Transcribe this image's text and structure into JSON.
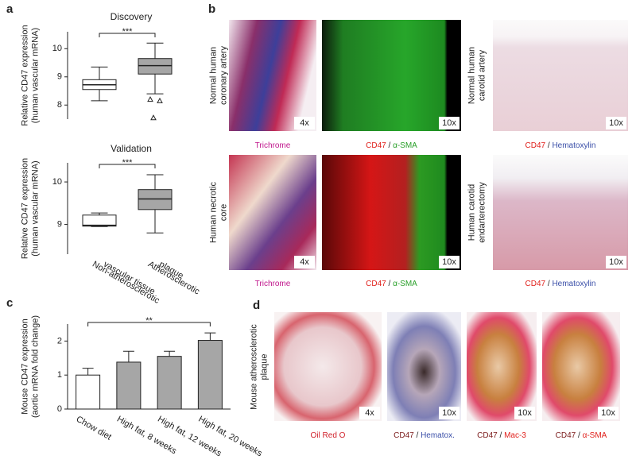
{
  "panel_labels": [
    "a",
    "b",
    "c",
    "d"
  ],
  "chart_data": [
    {
      "type": "box",
      "title": "Discovery",
      "ylabel": [
        "Relative CD47 expression",
        "(human vascular mRNA)"
      ],
      "categories": [
        null,
        null
      ],
      "boxes": [
        {
          "min": 8.15,
          "q1": 8.55,
          "median": 8.72,
          "q3": 8.9,
          "max": 9.35,
          "outliers": []
        },
        {
          "min": 8.4,
          "q1": 9.1,
          "median": 9.4,
          "q3": 9.65,
          "max": 10.2,
          "outliers": [
            8.2,
            8.15,
            7.55
          ]
        }
      ],
      "colors": [
        "#ffffff",
        "#a6a6a6"
      ],
      "ylim": [
        7.5,
        10.6
      ],
      "yticks": [
        8,
        9,
        10
      ],
      "annotation": "***"
    },
    {
      "type": "box",
      "title": "Validation",
      "ylabel": [
        "Relative CD47 expression",
        "(human vascular mRNA)"
      ],
      "categories": [
        [
          "Non-atherosclerotic",
          "vascular tissue"
        ],
        [
          "Atherosclerotic",
          "plaque"
        ]
      ],
      "boxes": [
        {
          "min": 8.95,
          "q1": 8.96,
          "median": 8.98,
          "q3": 9.22,
          "max": 9.27,
          "outliers": []
        },
        {
          "min": 8.8,
          "q1": 9.35,
          "median": 9.6,
          "q3": 9.82,
          "max": 10.17,
          "outliers": []
        }
      ],
      "colors": [
        "#ffffff",
        "#a6a6a6"
      ],
      "ylim": [
        8.3,
        10.45
      ],
      "yticks": [
        9,
        10
      ],
      "annotation": "***"
    },
    {
      "type": "bar",
      "ylabel": [
        "Mouse CD47 expression",
        "(aortic mRNA fold change)"
      ],
      "categories": [
        "Chow diet",
        "High fat, 8 weeks",
        "High fat, 12 weeks",
        "High fat, 20 weeks"
      ],
      "values": [
        1.0,
        1.38,
        1.55,
        2.02
      ],
      "errors": [
        0.2,
        0.32,
        0.15,
        0.22
      ],
      "colors": [
        "#ffffff",
        "#a6a6a6",
        "#a6a6a6",
        "#a6a6a6"
      ],
      "ylim": [
        0,
        2.5
      ],
      "yticks": [
        0,
        1,
        2
      ],
      "annotation": "**"
    }
  ],
  "panel_b": {
    "row_labels": [
      [
        "Normal human",
        "coronary artery"
      ],
      [
        "Human necrotic",
        "core"
      ]
    ],
    "side_labels": [
      [
        "Normal human",
        "carotid artery"
      ],
      [
        "Human carotid",
        "endarterectomy"
      ]
    ],
    "magnifications": [
      [
        "4x",
        "10x",
        "10x"
      ],
      [
        "4x",
        "10x",
        "10x"
      ]
    ],
    "captions": [
      [
        {
          "text": "Trichrome",
          "color": "#c0168c"
        }
      ],
      [
        {
          "text": "CD47",
          "color": "#e0201b"
        },
        {
          "text": " / ",
          "color": "#222222"
        },
        {
          "text": "α-SMA",
          "color": "#2aa02a"
        }
      ],
      [
        {
          "text": "CD47",
          "color": "#e0201b"
        },
        {
          "text": " / ",
          "color": "#222222"
        },
        {
          "text": "Hematoxylin",
          "color": "#3a4fa8"
        }
      ]
    ]
  },
  "panel_d": {
    "row_label": [
      "Mouse atherosclerotic",
      "plaque"
    ],
    "magnifications": [
      "4x",
      "10x",
      "10x",
      "10x"
    ],
    "captions": [
      [
        {
          "text": "Oil Red O",
          "color": "#d0202a"
        }
      ],
      [
        {
          "text": "CD47",
          "color": "#7a1a1a"
        },
        {
          "text": " / ",
          "color": "#222222"
        },
        {
          "text": "Hematox.",
          "color": "#3a4fa8"
        }
      ],
      [
        {
          "text": "CD47",
          "color": "#7a1a1a"
        },
        {
          "text": " / ",
          "color": "#222222"
        },
        {
          "text": "Mac-3",
          "color": "#e0201b"
        }
      ],
      [
        {
          "text": "CD47",
          "color": "#7a1a1a"
        },
        {
          "text": " / ",
          "color": "#222222"
        },
        {
          "text": "α-SMA",
          "color": "#e0201b"
        }
      ]
    ]
  }
}
